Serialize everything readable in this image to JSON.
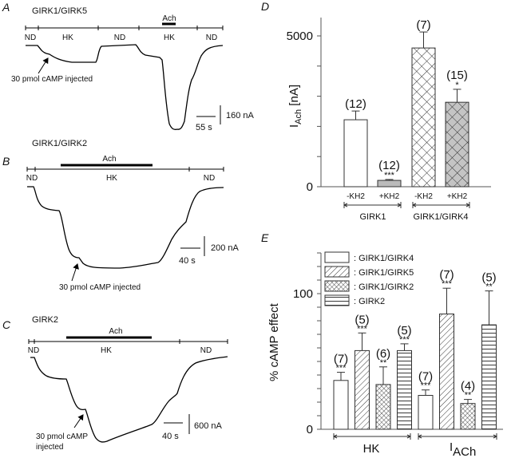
{
  "panels": {
    "A": {
      "letter": "A",
      "title": "GIRK1/GIRK5",
      "drug": "Ach",
      "segments": [
        "ND",
        "HK",
        "ND",
        "HK",
        "ND"
      ],
      "annotation": "30 pmol cAMP injected",
      "scale_current": "160 nA",
      "scale_time": "55 s"
    },
    "B": {
      "letter": "B",
      "title": "GIRK1/GIRK2",
      "drug": "Ach",
      "segments": [
        "ND",
        "HK",
        "ND"
      ],
      "annotation": "30 pmol cAMP injected",
      "scale_current": "200 nA",
      "scale_time": "40 s"
    },
    "C": {
      "letter": "C",
      "title": "GIRK2",
      "drug": "Ach",
      "segments": [
        "ND",
        "HK",
        "ND"
      ],
      "annotation_line1": "30 pmol cAMP",
      "annotation_line2": "injected",
      "scale_current": "600 nA",
      "scale_time": "40 s"
    }
  },
  "chart_data": [
    {
      "panel": "D",
      "type": "bar",
      "ylabel_main": "I",
      "ylabel_sub": "Ach",
      "ylabel_unit": " [nA]",
      "ylim": [
        0,
        5500
      ],
      "yticks": [
        0,
        1000,
        2000,
        3000,
        4000,
        5000
      ],
      "ytick_labels": [
        "0",
        "",
        "",
        "",
        "",
        "5000"
      ],
      "categories": [
        "-KH2",
        "+KH2",
        "-KH2",
        "+KH2"
      ],
      "groups": [
        {
          "label": "GIRK1",
          "members": [
            0,
            1
          ]
        },
        {
          "label": "GIRK1/GIRK4",
          "members": [
            2,
            3
          ]
        }
      ],
      "values": [
        2220,
        210,
        4600,
        2800
      ],
      "errors": [
        290,
        30,
        530,
        430
      ],
      "n_labels": [
        "(12)",
        "(12)",
        "(7)",
        "(15)"
      ],
      "significance": [
        "",
        "***",
        "",
        "*"
      ],
      "fills": [
        "plain-white",
        "plain-gray",
        "crosshatch-white",
        "crosshatch-gray"
      ]
    },
    {
      "panel": "E",
      "type": "bar",
      "ylabel": "% cAMP effect",
      "ylim": [
        0,
        130
      ],
      "yticks": [
        0,
        10,
        20,
        30,
        40,
        50,
        60,
        70,
        80,
        90,
        100,
        110,
        120,
        130
      ],
      "ytick_labels": {
        "0": "0",
        "100": "100"
      },
      "groups": [
        {
          "label": "HK",
          "label_sub": ""
        },
        {
          "label": "I",
          "label_sub": "ACh"
        }
      ],
      "series": [
        {
          "name": ": GIRK1/GIRK4",
          "pattern": "plain",
          "values": [
            36,
            25
          ],
          "errors": [
            6,
            4
          ],
          "n_labels": [
            "(7)",
            "(7)"
          ],
          "significance": [
            "***",
            "***"
          ]
        },
        {
          "name": ": GIRK1/GIRK5",
          "pattern": "diagonal",
          "values": [
            58,
            85
          ],
          "errors": [
            13,
            19
          ],
          "n_labels": [
            "(5)",
            "(7)"
          ],
          "significance": [
            "***",
            "***"
          ]
        },
        {
          "name": ": GIRK1/GIRK2",
          "pattern": "crosshatch",
          "values": [
            33,
            19
          ],
          "errors": [
            13,
            3
          ],
          "n_labels": [
            "(6)",
            "(4)"
          ],
          "significance": [
            "**",
            "**"
          ]
        },
        {
          "name": ": GIRK2",
          "pattern": "horizontal",
          "values": [
            58,
            77
          ],
          "errors": [
            5,
            25
          ],
          "n_labels": [
            "(5)",
            "(5)"
          ],
          "significance": [
            "***",
            "**"
          ]
        }
      ],
      "legend": "top-left"
    }
  ]
}
